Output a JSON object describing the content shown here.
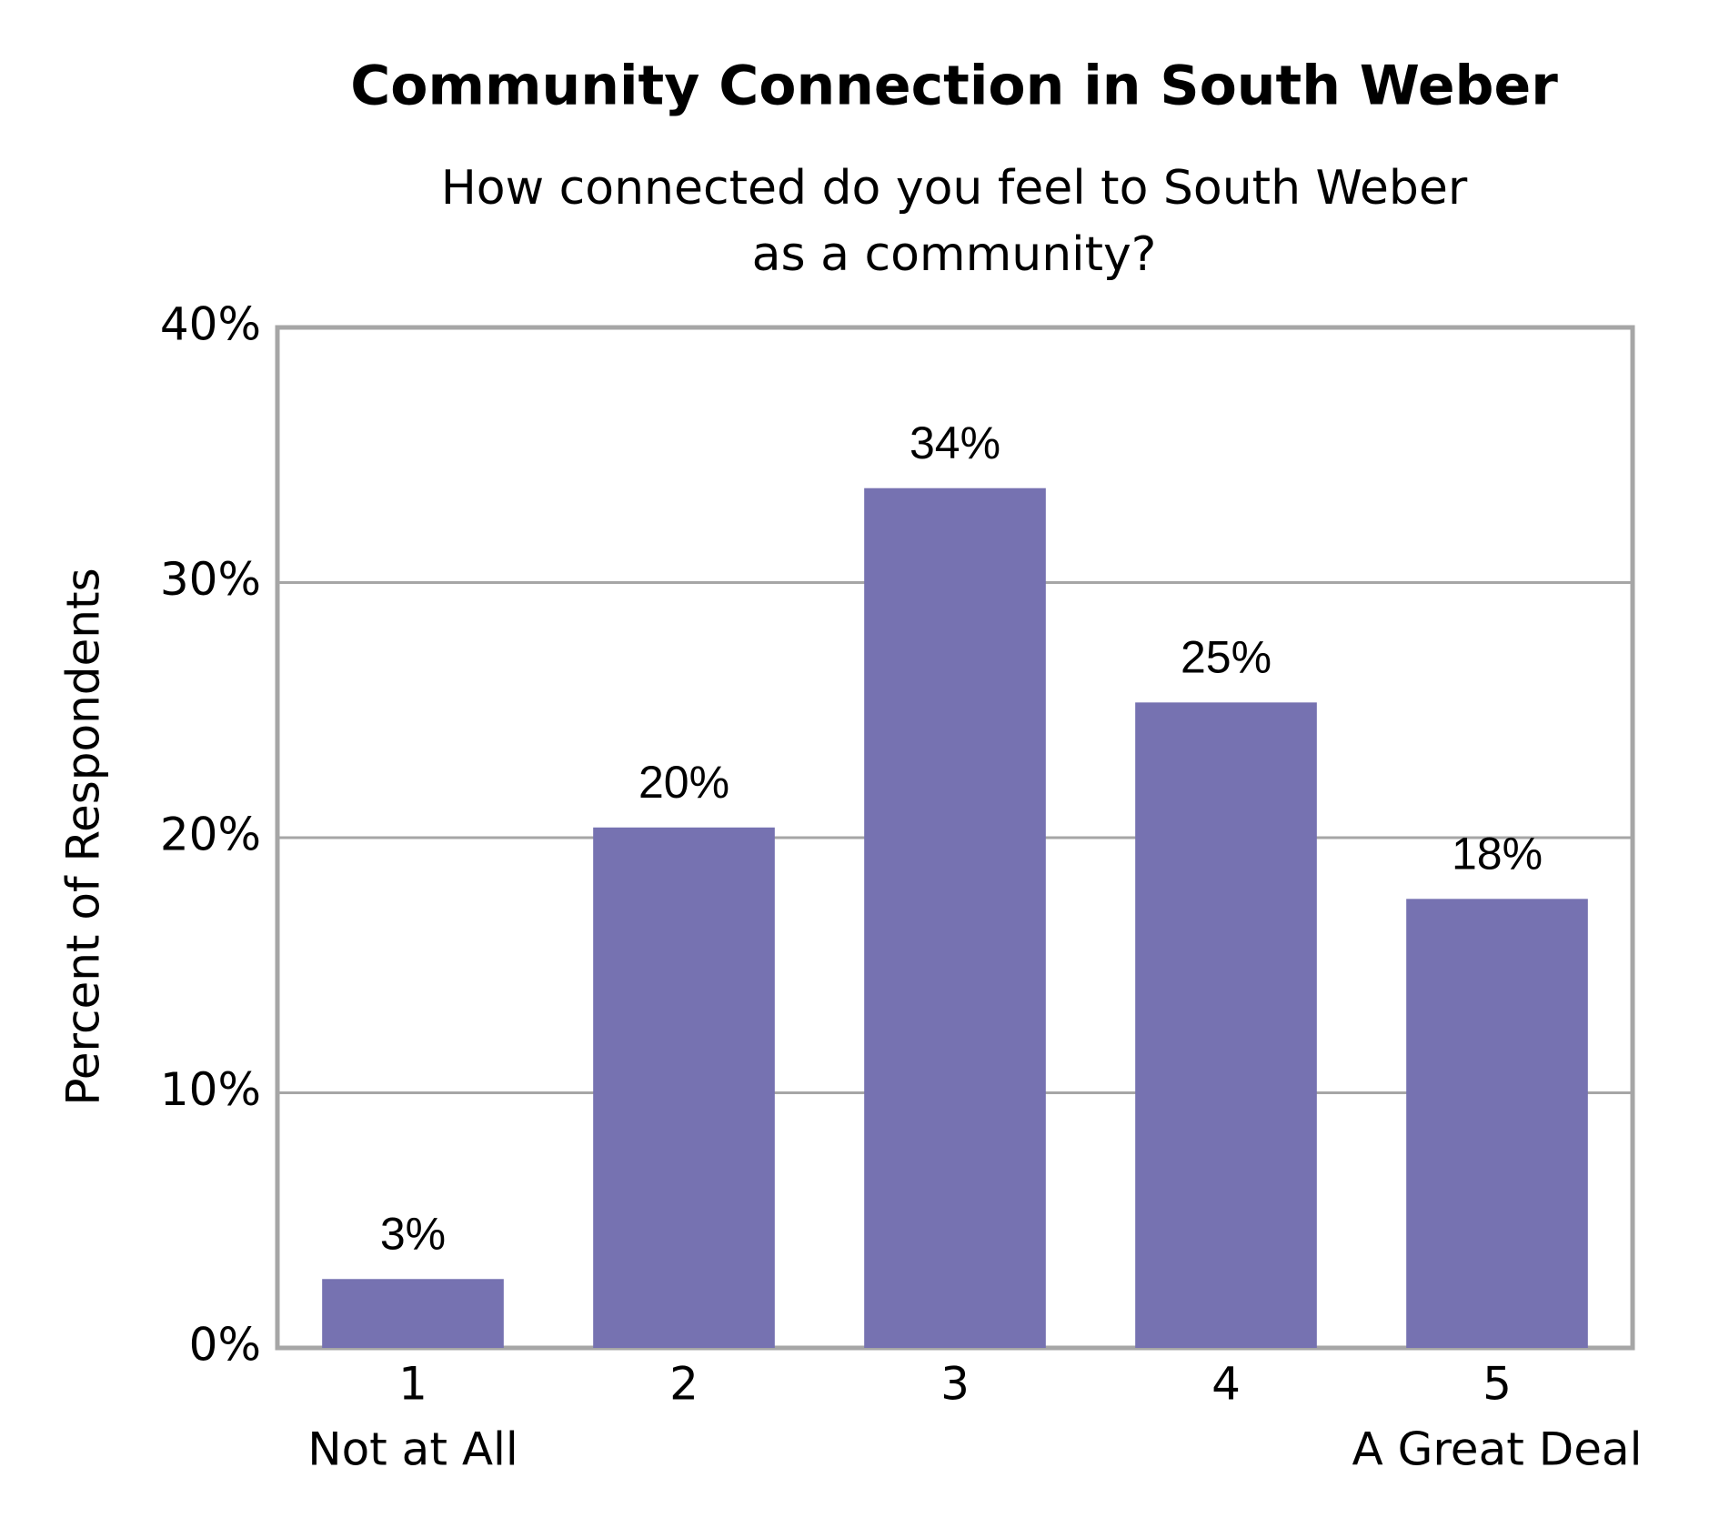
{
  "chart_data": {
    "type": "bar",
    "title": "Community Connection in South Weber",
    "subtitle": [
      "How connected do you feel to South Weber",
      "as a community?"
    ],
    "y_axis_label": "Percent of Respondents",
    "categories": [
      "1",
      "2",
      "3",
      "4",
      "5"
    ],
    "scale_labels": {
      "low": "Not at All",
      "high": "A Great Deal"
    },
    "values": [
      2.7,
      20.4,
      33.7,
      25.3,
      17.6
    ],
    "value_labels": [
      "3%",
      "20%",
      "34%",
      "25%",
      "18%"
    ],
    "color": "#7672b1",
    "ylim": [
      0,
      40
    ],
    "yticks": [
      {
        "value": 0,
        "label": "0%"
      },
      {
        "value": 10,
        "label": "10%"
      },
      {
        "value": 20,
        "label": "20%"
      },
      {
        "value": 30,
        "label": "30%"
      },
      {
        "value": 40,
        "label": "40%"
      }
    ],
    "grid": true
  }
}
